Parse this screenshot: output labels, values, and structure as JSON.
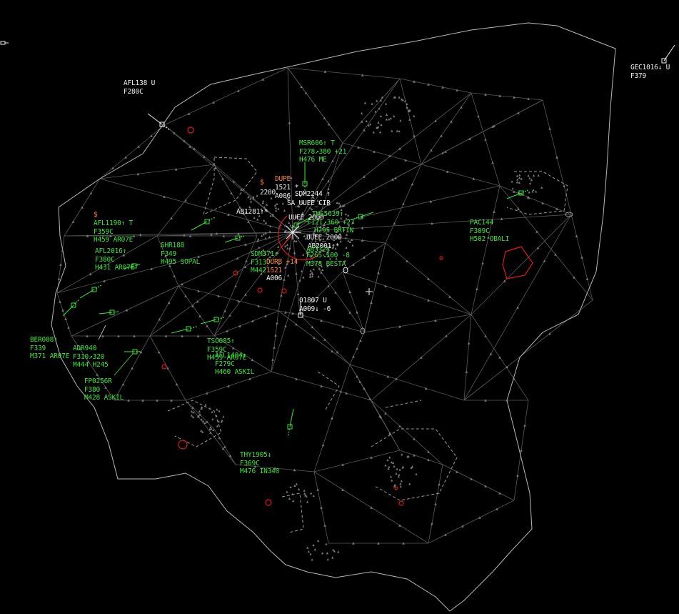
{
  "colors": {
    "background": "#000000",
    "boundary": "#b8b8b8",
    "airways": "#5a5a5a",
    "fixes": "#7a7a7a",
    "assumed_track": "#39e639",
    "unconcerned_track": "#f0f0f0",
    "restricted_area": "#e01818",
    "warning": "#ff8a3c"
  },
  "tracks": {
    "afl138": [
      "AFL138 U",
      "F280C"
    ],
    "gec1016": [
      "GEC1016↓ U",
      "F379"
    ],
    "msr606": [
      "MSR606↑ T",
      "F278↗380 +21",
      "H476 ME"
    ],
    "dupe": [
      "DUPE"
    ],
    "s1": [
      "$"
    ],
    "s2": [
      "$"
    ],
    "t2200": [
      "2200"
    ],
    "t1521": [
      "1521 *"
    ],
    "a006a": [
      "A006"
    ],
    "sdm2244": [
      "SDM2244 ↑"
    ],
    "sa_uuee": [
      "SA_UUEE_CIR"
    ],
    "uuee": [
      "UUEE_2000"
    ],
    "ab1281": [
      "AB1281↑*"
    ],
    "ths": [
      "THS5639↑"
    ],
    "f121": [
      "F121↗360 +27"
    ],
    "h295": [
      "H295 BRTIN"
    ],
    "uuee2": [
      "UUEE_2000"
    ],
    "afl1190": [
      "AFL1190↑ T",
      "F359C",
      "H459 AR07E"
    ],
    "afl2016": [
      "AFL2016↑",
      "F380C",
      "H431 AR07E"
    ],
    "shr188": [
      "SHR188",
      "F349",
      "H495 SOPAL"
    ],
    "sdm371": [
      "SDM371↑",
      "F313",
      "M442"
    ],
    "durb": [
      "DURB +14",
      "1521"
    ],
    "a006b": [
      "A006"
    ],
    "ab2001": [
      "AB2001↑*"
    ],
    "ab3324": [
      "AB3324"
    ],
    "f265": [
      "F265↘100 -8",
      "M378 BESTA"
    ],
    "pac144": [
      "PAC144",
      "F309C",
      "H502 OBALI"
    ],
    "t01807": [
      "01807 U",
      "A009↓ -6"
    ],
    "ber008": [
      "BER008↑",
      "F339",
      "M371 AR07E"
    ],
    "adr940": [
      "ADR940",
      "F310↗320",
      "M444 H245"
    ],
    "tso085": [
      "TSO085↑",
      "F359C",
      "H459 AR07E"
    ],
    "afl1404": [
      "AFL1404↑",
      "F279C",
      "H460 ASKIL"
    ],
    "fp0256": [
      "FP0256R",
      "F380",
      "M428 ASKIL"
    ],
    "thy1905": [
      "THY1905↓",
      "F369C",
      "M476 IN340"
    ]
  }
}
